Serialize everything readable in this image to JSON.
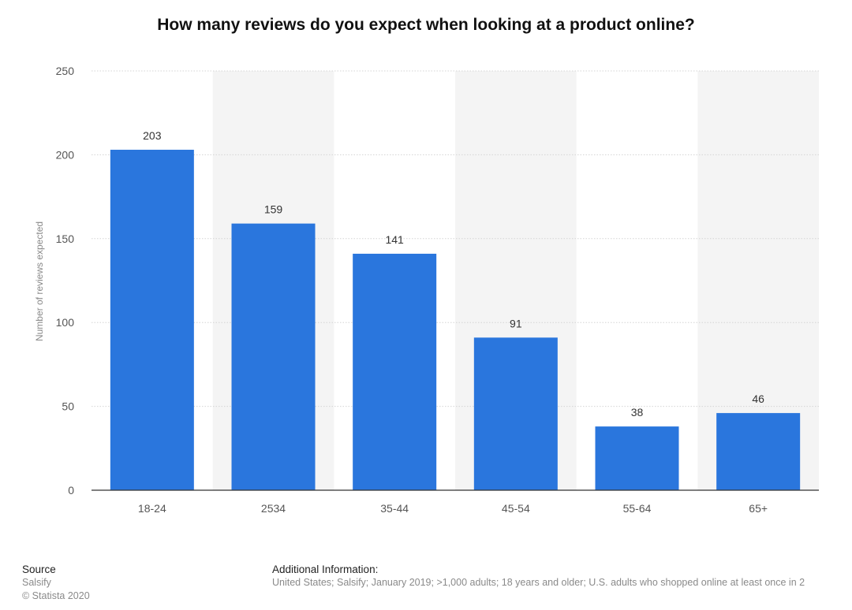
{
  "chart_data": {
    "type": "bar",
    "title": "How many reviews do you expect when looking at a product online?",
    "xlabel": "",
    "ylabel": "Number of reviews expected",
    "categories": [
      "18-24",
      "2534",
      "35-44",
      "45-54",
      "55-64",
      "65+"
    ],
    "values": [
      203,
      159,
      141,
      91,
      38,
      46
    ],
    "value_labels": [
      "203",
      "159",
      "141",
      "91",
      "38",
      "46"
    ],
    "ylim": [
      0,
      250
    ],
    "yticks": [
      0,
      50,
      100,
      150,
      200,
      250
    ],
    "ytick_labels": [
      "0",
      "50",
      "100",
      "150",
      "200",
      "250"
    ],
    "grid": true,
    "bar_color": "#2a76dd"
  },
  "footer": {
    "source_heading": "Source",
    "source_name": "Salsify",
    "copyright": "© Statista 2020",
    "additional_heading": "Additional Information:",
    "additional_text": "United States; Salsify; January 2019; >1,000 adults; 18 years and older; U.S. adults who shopped online at least once in 2"
  }
}
